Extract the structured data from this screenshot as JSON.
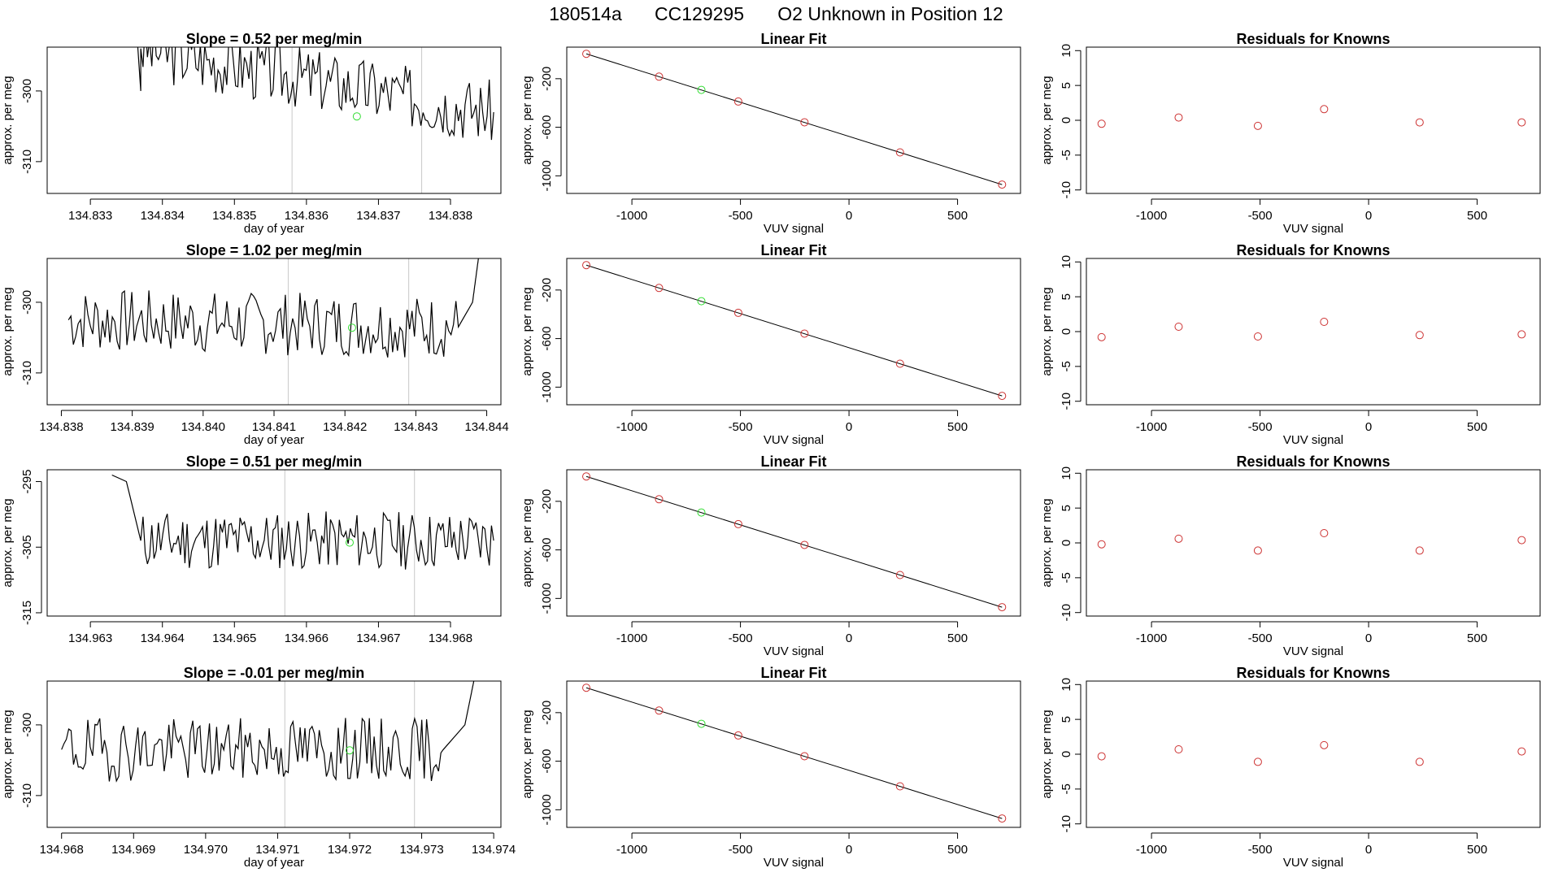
{
  "header": {
    "run": "180514a",
    "tank": "CC129295",
    "description": "O2 Unknown in Position  12"
  },
  "colors": {
    "known": "#cd3333",
    "unknown": "#33dd33",
    "line": "#000000",
    "marker": "#c8c8c8"
  },
  "chart_data": [
    {
      "type": "line",
      "row": 0,
      "panel": "trace",
      "title": "Slope =  0.52  per meg/min",
      "xlabel": "day of year",
      "ylabel": "approx. per meg",
      "xlim": [
        134.8324,
        134.8387
      ],
      "ylim": [
        -314.5,
        -293.8
      ],
      "xticks": [
        134.833,
        134.834,
        134.835,
        134.836,
        134.837,
        134.838
      ],
      "xtick_labels": [
        "134.833",
        "134.834",
        "134.835",
        "134.836",
        "134.837",
        "134.838"
      ],
      "yticks": [
        -300,
        -310
      ],
      "ytick_labels": [
        "-300",
        "-310"
      ],
      "markers": [
        134.8358,
        134.8376
      ],
      "unknown_point": [
        134.8367,
        -303.6
      ],
      "noise_seed": 3,
      "segments": [
        [
          134.8336,
          -285,
          134.8337,
          -300
        ],
        [
          134.8337,
          -300,
          134.8337,
          -294
        ],
        [
          134.8337,
          -294,
          134.8386,
          -303
        ]
      ]
    },
    {
      "type": "scatter",
      "row": 0,
      "panel": "fit",
      "title": "Linear Fit",
      "xlabel": "VUV signal",
      "ylabel": "approx. per meg",
      "xlim": [
        -1300,
        790
      ],
      "ylim": [
        -1145,
        60
      ],
      "xticks": [
        -1000,
        -500,
        0,
        500
      ],
      "xtick_labels": [
        "-1000",
        "-500",
        "0",
        "500"
      ],
      "yticks": [
        -200,
        -600,
        -1000
      ],
      "ytick_labels": [
        "-200",
        "-600",
        "-1000"
      ],
      "fit_line": [
        [
          -1210,
          5
        ],
        [
          705,
          -1072
        ]
      ],
      "known_points": [
        [
          -1210,
          5
        ],
        [
          -875,
          -183
        ],
        [
          -510,
          -388
        ],
        [
          -205,
          -559
        ],
        [
          235,
          -807
        ],
        [
          705,
          -1072
        ]
      ],
      "unknown_points": [
        [
          -680,
          -292
        ]
      ]
    },
    {
      "type": "scatter",
      "row": 0,
      "panel": "residuals",
      "title": "Residuals for Knowns",
      "xlabel": "VUV signal",
      "ylabel": "approx. per meg",
      "xlim": [
        -1300,
        790
      ],
      "ylim": [
        -10.5,
        10.5
      ],
      "xticks": [
        -1000,
        -500,
        0,
        500
      ],
      "xtick_labels": [
        "-1000",
        "-500",
        "0",
        "500"
      ],
      "yticks": [
        10,
        5,
        0,
        -5,
        -10
      ],
      "ytick_labels": [
        "10",
        "5",
        "0",
        "-5",
        "-10"
      ],
      "known_points": [
        [
          -1230,
          -0.5
        ],
        [
          -875,
          0.4
        ],
        [
          -510,
          -0.8
        ],
        [
          -205,
          1.6
        ],
        [
          235,
          -0.3
        ],
        [
          705,
          -0.3
        ]
      ]
    },
    {
      "type": "line",
      "row": 1,
      "panel": "trace",
      "title": "Slope =  1.02  per meg/min",
      "xlabel": "day of year",
      "ylabel": "approx. per meg",
      "xlim": [
        134.8378,
        134.8442
      ],
      "ylim": [
        -314.5,
        -293.8
      ],
      "xticks": [
        134.838,
        134.839,
        134.84,
        134.841,
        134.842,
        134.843,
        134.844
      ],
      "xtick_labels": [
        "134.838",
        "134.839",
        "134.840",
        "134.841",
        "134.842",
        "134.843",
        "134.844"
      ],
      "yticks": [
        -300,
        -310
      ],
      "ytick_labels": [
        "-300",
        "-310"
      ],
      "markers": [
        134.8412,
        134.8429
      ],
      "unknown_point": [
        134.8421,
        -303.6
      ],
      "noise_seed": 7,
      "segments": [
        [
          134.8381,
          -302.5,
          134.8436,
          -303.5
        ],
        [
          134.8436,
          -303.5,
          134.8438,
          -300
        ],
        [
          134.8438,
          -300,
          134.844,
          -285
        ]
      ]
    },
    {
      "type": "scatter",
      "row": 1,
      "panel": "fit",
      "title": "Linear Fit",
      "xlabel": "VUV signal",
      "ylabel": "approx. per meg",
      "xlim": [
        -1300,
        790
      ],
      "ylim": [
        -1145,
        60
      ],
      "xticks": [
        -1000,
        -500,
        0,
        500
      ],
      "xtick_labels": [
        "-1000",
        "-500",
        "0",
        "500"
      ],
      "yticks": [
        -200,
        -600,
        -1000
      ],
      "ytick_labels": [
        "-200",
        "-600",
        "-1000"
      ],
      "fit_line": [
        [
          -1210,
          5
        ],
        [
          705,
          -1072
        ]
      ],
      "known_points": [
        [
          -1210,
          5
        ],
        [
          -875,
          -183
        ],
        [
          -510,
          -388
        ],
        [
          -205,
          -559
        ],
        [
          235,
          -807
        ],
        [
          705,
          -1072
        ]
      ],
      "unknown_points": [
        [
          -680,
          -292
        ]
      ]
    },
    {
      "type": "scatter",
      "row": 1,
      "panel": "residuals",
      "title": "Residuals for Knowns",
      "xlabel": "VUV signal",
      "ylabel": "approx. per meg",
      "xlim": [
        -1300,
        790
      ],
      "ylim": [
        -10.5,
        10.5
      ],
      "xticks": [
        -1000,
        -500,
        0,
        500
      ],
      "xtick_labels": [
        "-1000",
        "-500",
        "0",
        "500"
      ],
      "yticks": [
        10,
        5,
        0,
        -5,
        -10
      ],
      "ytick_labels": [
        "10",
        "5",
        "0",
        "-5",
        "-10"
      ],
      "known_points": [
        [
          -1230,
          -0.8
        ],
        [
          -875,
          0.7
        ],
        [
          -510,
          -0.7
        ],
        [
          -205,
          1.4
        ],
        [
          235,
          -0.5
        ],
        [
          705,
          -0.4
        ]
      ]
    },
    {
      "type": "line",
      "row": 2,
      "panel": "trace",
      "title": "Slope =  0.51  per meg/min",
      "xlabel": "",
      "ylabel": "approx. per meg",
      "xlim": [
        134.9624,
        134.9687
      ],
      "ylim": [
        -315.5,
        -293.2
      ],
      "xticks": [
        134.963,
        134.964,
        134.965,
        134.966,
        134.967,
        134.968
      ],
      "xtick_labels": [
        "134.963",
        "134.964",
        "134.965",
        "134.966",
        "134.967",
        "134.968"
      ],
      "yticks": [
        -295,
        -305,
        -315
      ],
      "ytick_labels": [
        "-295",
        "-305",
        "-315"
      ],
      "markers": [
        134.9657,
        134.9675
      ],
      "unknown_point": [
        134.9666,
        -304.3
      ],
      "noise_seed": 11,
      "segments": [
        [
          134.9633,
          -294,
          134.9635,
          -295
        ],
        [
          134.9635,
          -295,
          134.9637,
          -304
        ],
        [
          134.9637,
          -304,
          134.9686,
          -304
        ]
      ]
    },
    {
      "type": "scatter",
      "row": 2,
      "panel": "fit",
      "title": "Linear Fit",
      "xlabel": "VUV signal",
      "ylabel": "approx. per meg",
      "xlim": [
        -1300,
        790
      ],
      "ylim": [
        -1145,
        60
      ],
      "xticks": [
        -1000,
        -500,
        0,
        500
      ],
      "xtick_labels": [
        "-1000",
        "-500",
        "0",
        "500"
      ],
      "yticks": [
        -200,
        -600,
        -1000
      ],
      "ytick_labels": [
        "-200",
        "-600",
        "-1000"
      ],
      "fit_line": [
        [
          -1210,
          5
        ],
        [
          705,
          -1072
        ]
      ],
      "known_points": [
        [
          -1210,
          5
        ],
        [
          -875,
          -183
        ],
        [
          -510,
          -388
        ],
        [
          -205,
          -559
        ],
        [
          235,
          -807
        ],
        [
          705,
          -1072
        ]
      ],
      "unknown_points": [
        [
          -680,
          -292
        ]
      ]
    },
    {
      "type": "scatter",
      "row": 2,
      "panel": "residuals",
      "title": "Residuals for Knowns",
      "xlabel": "VUV signal",
      "ylabel": "approx. per meg",
      "xlim": [
        -1300,
        790
      ],
      "ylim": [
        -10.5,
        10.5
      ],
      "xticks": [
        -1000,
        -500,
        0,
        500
      ],
      "xtick_labels": [
        "-1000",
        "-500",
        "0",
        "500"
      ],
      "yticks": [
        10,
        5,
        0,
        -5,
        -10
      ],
      "ytick_labels": [
        "10",
        "5",
        "0",
        "-5",
        "-10"
      ],
      "known_points": [
        [
          -1230,
          -0.2
        ],
        [
          -875,
          0.6
        ],
        [
          -510,
          -1.1
        ],
        [
          -205,
          1.4
        ],
        [
          235,
          -1.1
        ],
        [
          705,
          0.4
        ]
      ]
    },
    {
      "type": "line",
      "row": 3,
      "panel": "trace",
      "title": "Slope =  -0.01  per meg/min",
      "xlabel": "day of year",
      "ylabel": "approx. per meg",
      "xlim": [
        134.9678,
        134.9741
      ],
      "ylim": [
        -314.5,
        -293.8
      ],
      "xticks": [
        134.968,
        134.969,
        134.97,
        134.971,
        134.972,
        134.973,
        134.974
      ],
      "xtick_labels": [
        "134.968",
        "134.969",
        "134.970",
        "134.971",
        "134.972",
        "134.973",
        "134.974"
      ],
      "yticks": [
        -300,
        -310
      ],
      "ytick_labels": [
        "-300",
        "-310"
      ],
      "markers": [
        134.9711,
        134.9729
      ],
      "unknown_point": [
        134.972,
        -303.6
      ],
      "noise_seed": 19,
      "segments": [
        [
          134.968,
          -303.5,
          134.9733,
          -303.5
        ],
        [
          134.9733,
          -303.5,
          134.9736,
          -300
        ],
        [
          134.9736,
          -300,
          134.9739,
          -285
        ]
      ]
    },
    {
      "type": "scatter",
      "row": 3,
      "panel": "fit",
      "title": "Linear Fit",
      "xlabel": "VUV signal",
      "ylabel": "approx. per meg",
      "xlim": [
        -1300,
        790
      ],
      "ylim": [
        -1145,
        60
      ],
      "xticks": [
        -1000,
        -500,
        0,
        500
      ],
      "xtick_labels": [
        "-1000",
        "-500",
        "0",
        "500"
      ],
      "yticks": [
        -200,
        -600,
        -1000
      ],
      "ytick_labels": [
        "-200",
        "-600",
        "-1000"
      ],
      "fit_line": [
        [
          -1210,
          5
        ],
        [
          705,
          -1072
        ]
      ],
      "known_points": [
        [
          -1210,
          5
        ],
        [
          -875,
          -183
        ],
        [
          -510,
          -388
        ],
        [
          -205,
          -559
        ],
        [
          235,
          -807
        ],
        [
          705,
          -1072
        ]
      ],
      "unknown_points": [
        [
          -680,
          -292
        ]
      ]
    },
    {
      "type": "scatter",
      "row": 3,
      "panel": "residuals",
      "title": "Residuals for Knowns",
      "xlabel": "VUV signal",
      "ylabel": "approx. per meg",
      "xlim": [
        -1300,
        790
      ],
      "ylim": [
        -10.5,
        10.5
      ],
      "xticks": [
        -1000,
        -500,
        0,
        500
      ],
      "xtick_labels": [
        "-1000",
        "-500",
        "0",
        "500"
      ],
      "yticks": [
        10,
        5,
        0,
        -5,
        -10
      ],
      "ytick_labels": [
        "10",
        "5",
        "0",
        "-5",
        "-10"
      ],
      "known_points": [
        [
          -1230,
          -0.3
        ],
        [
          -875,
          0.7
        ],
        [
          -510,
          -1.1
        ],
        [
          -205,
          1.3
        ],
        [
          235,
          -1.1
        ],
        [
          705,
          0.4
        ]
      ]
    }
  ]
}
